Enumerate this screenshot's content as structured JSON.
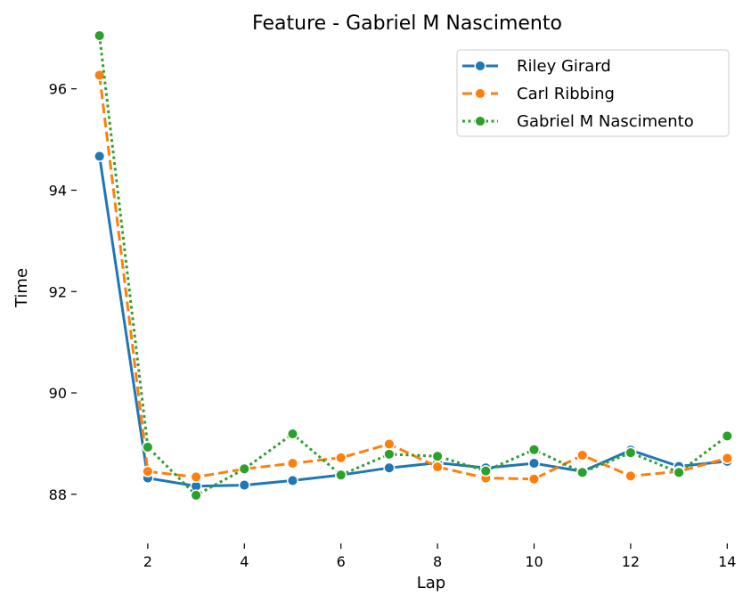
{
  "chart_data": {
    "type": "line",
    "title": "Feature - Gabriel M Nascimento",
    "xlabel": "Lap",
    "ylabel": "Time",
    "xlim": [
      0.6,
      14.4
    ],
    "ylim": [
      87.1,
      97.05
    ],
    "xticks": [
      2,
      4,
      6,
      8,
      10,
      12,
      14
    ],
    "yticks": [
      88,
      90,
      92,
      94,
      96
    ],
    "grid": false,
    "legend": "top-right",
    "x": [
      1,
      2,
      3,
      4,
      5,
      6,
      7,
      8,
      9,
      10,
      11,
      12,
      13,
      14
    ],
    "series": [
      {
        "name": "Riley Girard",
        "color": "#1f77b4",
        "dash": "solid",
        "values": [
          94.67,
          88.32,
          88.16,
          88.18,
          88.27,
          88.38,
          88.52,
          88.62,
          88.52,
          88.61,
          88.45,
          88.87,
          88.55,
          88.65
        ]
      },
      {
        "name": "Carl Ribbing",
        "color": "#ff7f0e",
        "dash": "dashed",
        "values": [
          96.27,
          88.45,
          88.34,
          88.5,
          88.61,
          88.72,
          88.99,
          88.54,
          88.32,
          88.3,
          88.77,
          88.36,
          88.45,
          88.71
        ]
      },
      {
        "name": "Gabriel M Nascimento",
        "color": "#2ca02c",
        "dash": "dotted",
        "values": [
          97.05,
          88.93,
          87.98,
          88.5,
          89.19,
          88.38,
          88.79,
          88.75,
          88.46,
          88.88,
          88.43,
          88.82,
          88.43,
          89.15
        ]
      }
    ]
  }
}
